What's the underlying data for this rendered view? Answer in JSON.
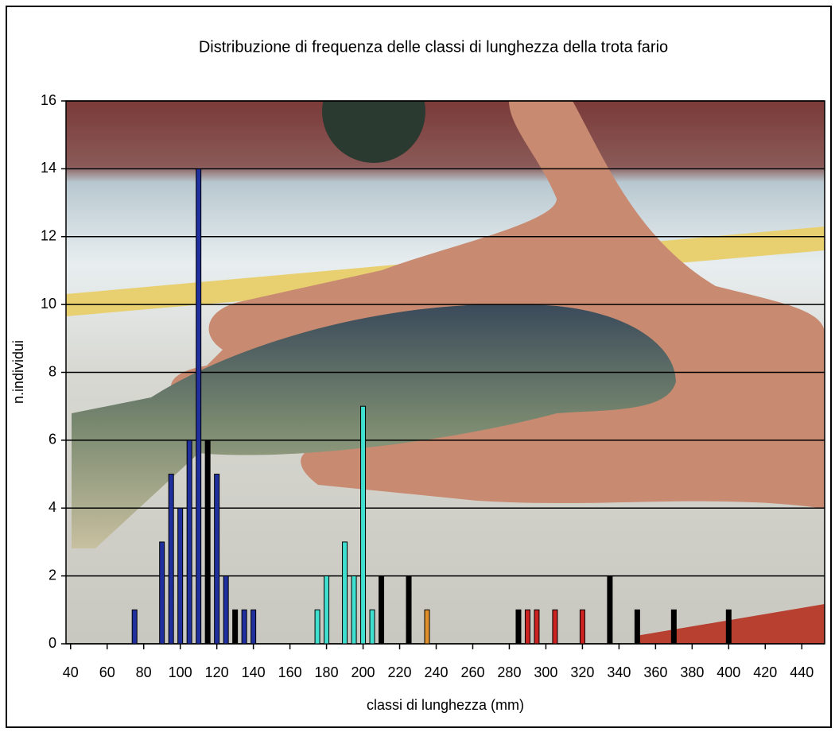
{
  "chart_data": {
    "type": "bar",
    "title": "Distribuzione di frequenza delle classi di lunghezza della trota fario",
    "x_label": "classi di lunghezza (mm)",
    "y_label": "n.individui",
    "x": [
      75,
      90,
      95,
      100,
      105,
      110,
      115,
      120,
      125,
      130,
      135,
      140,
      175,
      180,
      190,
      195,
      200,
      205,
      210,
      225,
      235,
      285,
      290,
      295,
      305,
      320,
      335,
      350,
      370,
      400
    ],
    "values": [
      1,
      3,
      5,
      4,
      6,
      14,
      6,
      5,
      2,
      1,
      1,
      1,
      1,
      2,
      3,
      2,
      7,
      1,
      2,
      2,
      1,
      1,
      1,
      1,
      1,
      1,
      2,
      1,
      1,
      1
    ],
    "colors": [
      "#1f2f9e",
      "#1f2f9e",
      "#1f2f9e",
      "#1f2f9e",
      "#1f2f9e",
      "#1f2f9e",
      "#000000",
      "#1f2f9e",
      "#1f2f9e",
      "#000000",
      "#1f2f9e",
      "#1f2f9e",
      "#40e0d0",
      "#40e0d0",
      "#40e0d0",
      "#40e0d0",
      "#40e0d0",
      "#40e0d0",
      "#000000",
      "#000000",
      "#e0902a",
      "#000000",
      "#cc2222",
      "#cc2222",
      "#cc2222",
      "#cc2222",
      "#000000",
      "#000000",
      "#000000",
      "#000000"
    ],
    "xlim": [
      37.5,
      452.5
    ],
    "xticks": [
      40,
      60,
      80,
      100,
      120,
      140,
      160,
      180,
      200,
      220,
      240,
      260,
      280,
      300,
      320,
      340,
      360,
      380,
      400,
      420,
      440
    ],
    "ylim": [
      0,
      16
    ],
    "yticks": [
      0,
      2,
      4,
      6,
      8,
      10,
      12,
      14,
      16
    ],
    "grid": true
  }
}
